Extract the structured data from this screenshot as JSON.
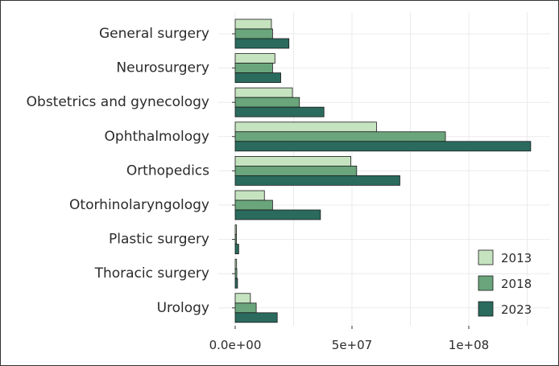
{
  "chart_data": {
    "type": "bar",
    "orientation": "horizontal",
    "title": "",
    "xlabel": "",
    "ylabel": "",
    "xlim": [
      0,
      130000000
    ],
    "grid": true,
    "categories": [
      "General surgery",
      "Neurosurgery",
      "Obstetrics and gynecology",
      "Ophthalmology",
      "Orthopedics",
      "Otorhinolaryngology",
      "Plastic surgery",
      "Thoracic surgery",
      "Urology"
    ],
    "series": [
      {
        "name": "2013",
        "color": "#c6e3c0",
        "values": [
          15500000,
          17000000,
          24500000,
          60500000,
          49500000,
          12500000,
          500000,
          600000,
          6500000
        ]
      },
      {
        "name": "2018",
        "color": "#6aa57c",
        "values": [
          16000000,
          16000000,
          27500000,
          90000000,
          52000000,
          16000000,
          500000,
          700000,
          9000000
        ]
      },
      {
        "name": "2023",
        "color": "#2a6b5e",
        "values": [
          23000000,
          19500000,
          38000000,
          126500000,
          70500000,
          36500000,
          1500000,
          1000000,
          18000000
        ]
      }
    ],
    "x_ticks": [
      {
        "value": 0,
        "label": "0.0e+00"
      },
      {
        "value": 50000000,
        "label": "5e+07"
      },
      {
        "value": 100000000,
        "label": "1e+08"
      }
    ],
    "legend": {
      "position": "bottom-right",
      "entries": [
        "2013",
        "2018",
        "2023"
      ]
    }
  }
}
